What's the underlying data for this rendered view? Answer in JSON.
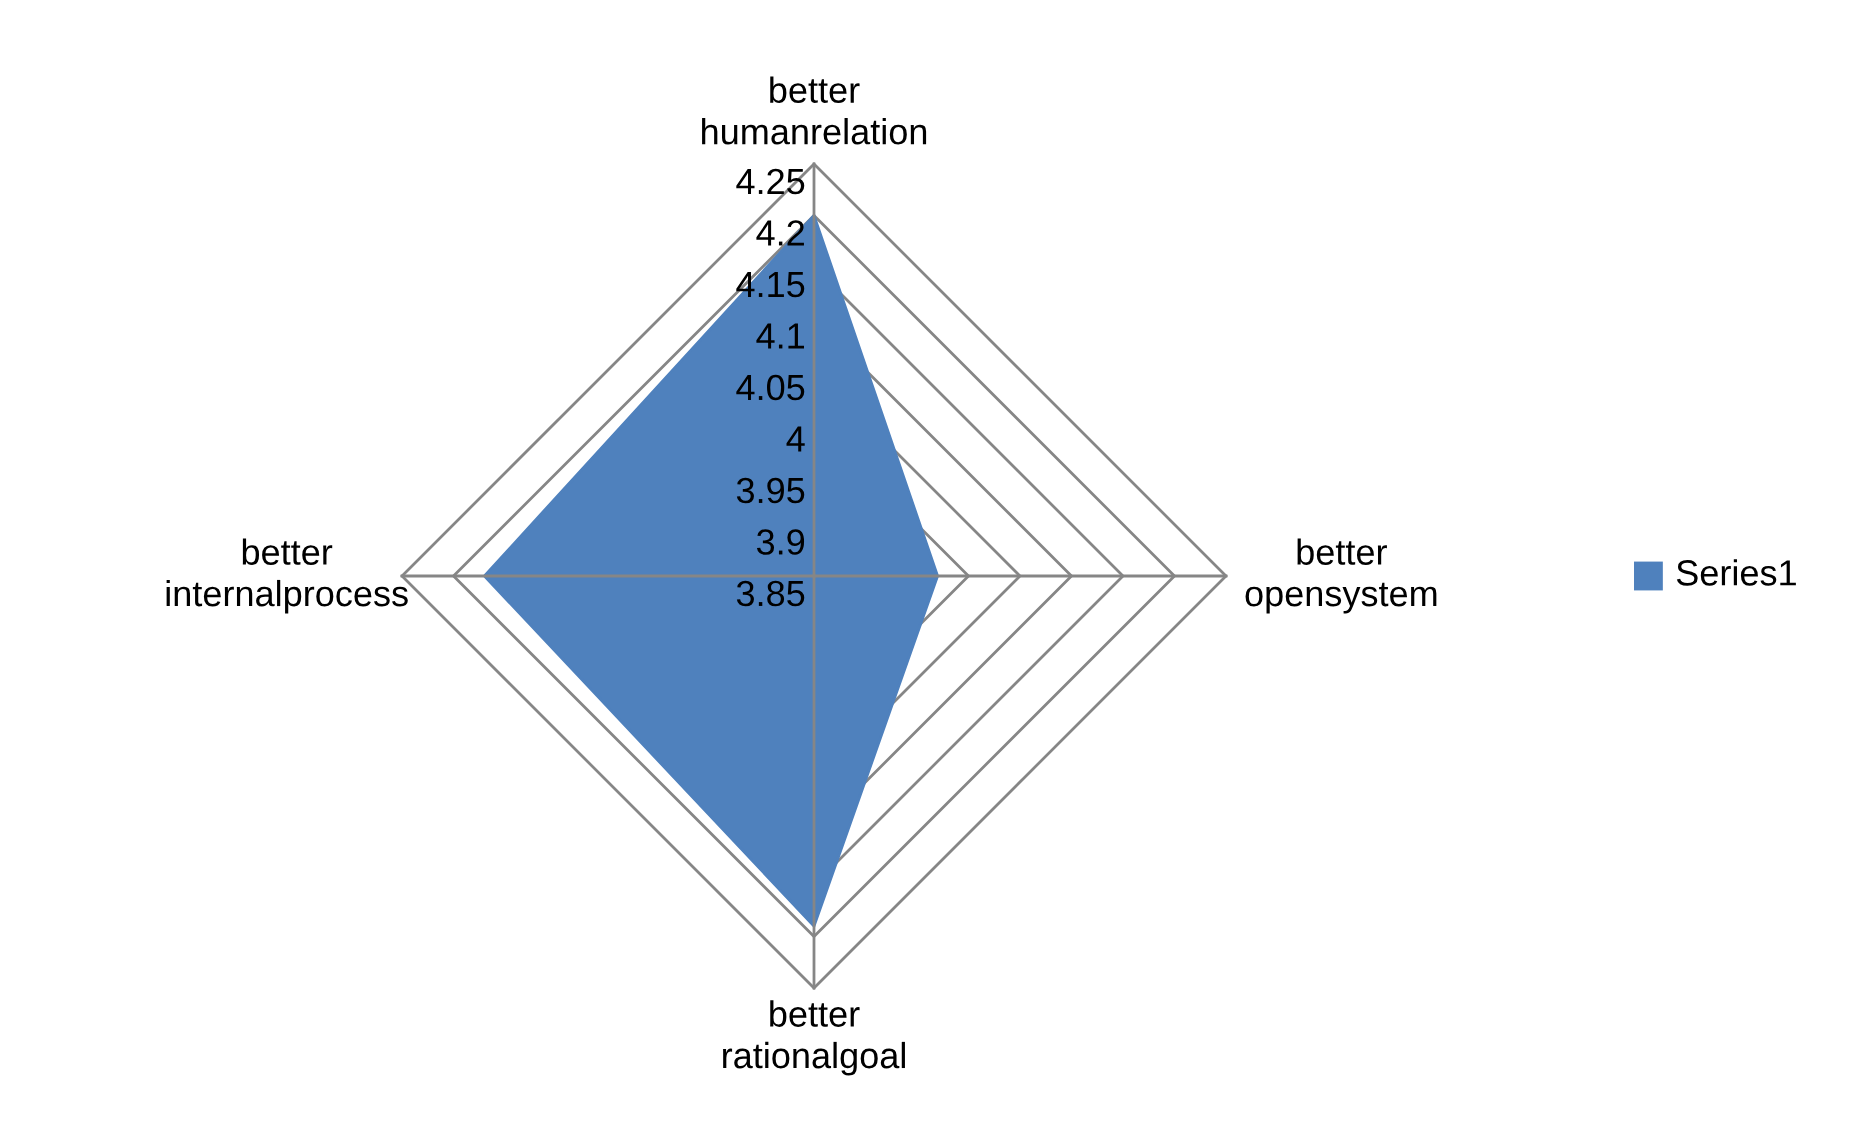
{
  "chart_data": {
    "type": "radar",
    "categories": [
      "better\nhumanrelation",
      "better\nopensystem",
      "better\nrationalgoal",
      "better\ninternalprocess"
    ],
    "series": [
      {
        "name": "Series1",
        "color": "#4f81bd",
        "values": [
          4.2,
          3.97,
          4.19,
          4.17
        ]
      }
    ],
    "ylim": [
      3.85,
      4.25
    ],
    "yticks": [
      3.85,
      3.9,
      3.95,
      4,
      4.05,
      4.1,
      4.15,
      4.2,
      4.25
    ],
    "legend": "right"
  }
}
